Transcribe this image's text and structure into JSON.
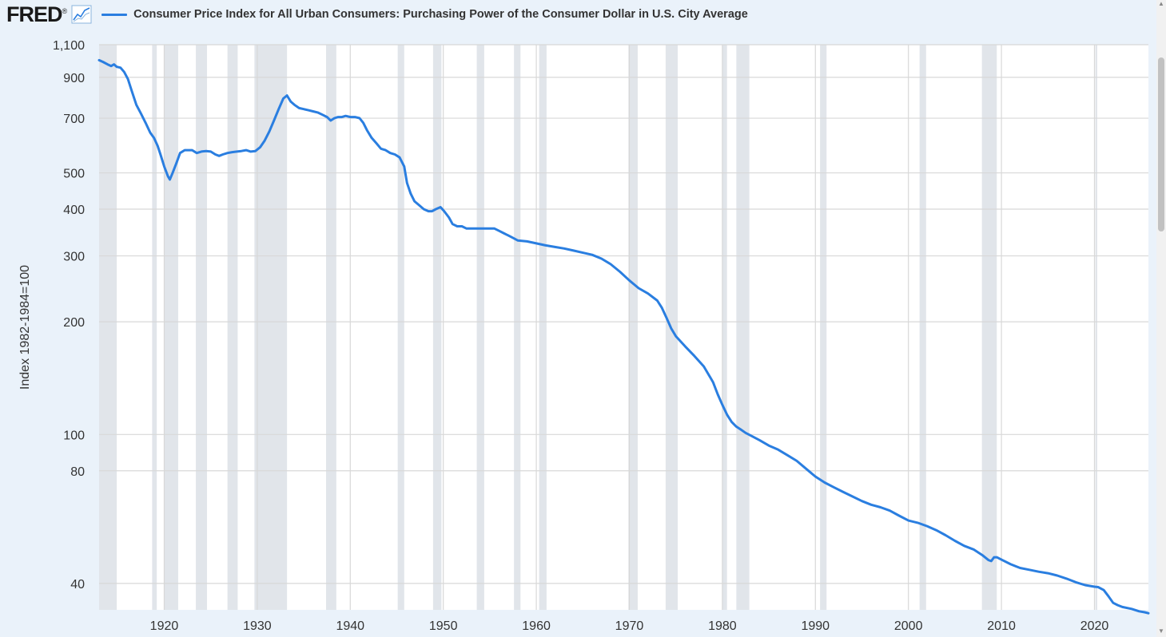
{
  "header": {
    "logo_text": "FRED",
    "logo_mark": "®"
  },
  "colors": {
    "series": "#2a7ee0",
    "recession": "#e1e5ea",
    "plot_bg": "#ffffff",
    "page_bg": "#eaf2fa",
    "grid": "#d8d8d8"
  },
  "chart_data": {
    "type": "line",
    "title": "Consumer Price Index for All Urban Consumers: Purchasing Power of the Consumer Dollar in U.S. City Average",
    "xlabel": "",
    "ylabel": "Index 1982-1984=100",
    "yscale": "log",
    "xlim": [
      1913,
      2025.8
    ],
    "ylim": [
      34,
      1100
    ],
    "x_ticks": [
      1920,
      1930,
      1940,
      1950,
      1960,
      1970,
      1980,
      1990,
      2000,
      2010,
      2020
    ],
    "y_ticks": [
      {
        "value": 1100,
        "label": "1,100"
      },
      {
        "value": 900,
        "label": "900"
      },
      {
        "value": 700,
        "label": "700"
      },
      {
        "value": 500,
        "label": "500"
      },
      {
        "value": 400,
        "label": "400"
      },
      {
        "value": 300,
        "label": "300"
      },
      {
        "value": 200,
        "label": "200"
      },
      {
        "value": 100,
        "label": "100"
      },
      {
        "value": 80,
        "label": "80"
      },
      {
        "value": 40,
        "label": "40"
      }
    ],
    "grid": true,
    "recessions": [
      [
        1913.0,
        1914.9
      ],
      [
        1918.7,
        1919.2
      ],
      [
        1920.0,
        1921.5
      ],
      [
        1923.4,
        1924.6
      ],
      [
        1926.8,
        1927.9
      ],
      [
        1929.7,
        1933.2
      ],
      [
        1937.4,
        1938.5
      ],
      [
        1945.1,
        1945.8
      ],
      [
        1948.9,
        1949.8
      ],
      [
        1953.6,
        1954.4
      ],
      [
        1957.6,
        1958.3
      ],
      [
        1960.3,
        1961.1
      ],
      [
        1969.9,
        1970.9
      ],
      [
        1973.9,
        1975.2
      ],
      [
        1980.0,
        1980.5
      ],
      [
        1981.5,
        1982.9
      ],
      [
        1990.5,
        1991.2
      ],
      [
        2001.2,
        2001.9
      ],
      [
        2007.9,
        2009.5
      ],
      [
        2020.1,
        2020.3
      ]
    ],
    "series": [
      {
        "name": "Consumer Price Index for All Urban Consumers: Purchasing Power of the Consumer Dollar in U.S. City Average",
        "x": [
          1913.0,
          1913.4,
          1913.9,
          1914.3,
          1914.6,
          1914.9,
          1915.3,
          1915.7,
          1916.1,
          1916.5,
          1917.0,
          1917.5,
          1918.0,
          1918.5,
          1918.9,
          1919.3,
          1919.6,
          1920.0,
          1920.4,
          1920.6,
          1920.9,
          1921.3,
          1921.7,
          1922.2,
          1922.6,
          1923.0,
          1923.5,
          1924.0,
          1924.5,
          1925.0,
          1925.5,
          1925.9,
          1926.3,
          1926.8,
          1927.3,
          1927.8,
          1928.3,
          1928.8,
          1929.3,
          1929.8,
          1930.3,
          1930.8,
          1931.3,
          1931.8,
          1932.3,
          1932.8,
          1933.2,
          1933.6,
          1934.0,
          1934.5,
          1935.0,
          1935.5,
          1936.0,
          1936.5,
          1937.0,
          1937.5,
          1937.9,
          1938.3,
          1938.7,
          1939.1,
          1939.5,
          1940.0,
          1940.5,
          1941.0,
          1941.4,
          1941.8,
          1942.3,
          1942.8,
          1943.3,
          1943.8,
          1944.3,
          1944.8,
          1945.3,
          1945.8,
          1946.1,
          1946.5,
          1946.9,
          1947.4,
          1947.9,
          1948.4,
          1948.8,
          1949.2,
          1949.7,
          1950.1,
          1950.6,
          1951.0,
          1951.5,
          1952.0,
          1952.5,
          1953.0,
          1953.5,
          1954.0,
          1954.5,
          1955.0,
          1955.5,
          1956.0,
          1956.5,
          1957.0,
          1957.5,
          1958.0,
          1959.0,
          1960.0,
          1961.0,
          1962.0,
          1963.0,
          1964.0,
          1965.0,
          1966.0,
          1967.0,
          1968.0,
          1969.0,
          1970.0,
          1971.0,
          1972.0,
          1973.0,
          1973.5,
          1974.0,
          1974.5,
          1975.0,
          1976.0,
          1977.0,
          1978.0,
          1979.0,
          1979.5,
          1980.0,
          1980.5,
          1981.0,
          1981.5,
          1982.0,
          1982.5,
          1983.0,
          1984.0,
          1985.0,
          1986.0,
          1987.0,
          1988.0,
          1989.0,
          1990.0,
          1991.0,
          1992.0,
          1993.0,
          1994.0,
          1995.0,
          1996.0,
          1997.0,
          1998.0,
          1999.0,
          2000.0,
          2001.0,
          2002.0,
          2003.0,
          2004.0,
          2005.0,
          2006.0,
          2007.0,
          2008.0,
          2008.6,
          2008.9,
          2009.2,
          2009.5,
          2010.0,
          2011.0,
          2012.0,
          2013.0,
          2014.0,
          2015.0,
          2016.0,
          2017.0,
          2018.0,
          2019.0,
          2020.0,
          2020.4,
          2021.0,
          2021.5,
          2022.0,
          2022.5,
          2023.0,
          2024.0,
          2024.8,
          2025.4,
          2025.8
        ],
        "values": [
          1000,
          990,
          975,
          965,
          975,
          960,
          955,
          930,
          890,
          830,
          760,
          720,
          680,
          640,
          620,
          590,
          560,
          520,
          490,
          480,
          500,
          530,
          565,
          575,
          575,
          575,
          565,
          570,
          572,
          570,
          560,
          555,
          560,
          565,
          568,
          570,
          572,
          575,
          570,
          572,
          585,
          610,
          645,
          690,
          740,
          790,
          805,
          775,
          760,
          745,
          740,
          735,
          730,
          725,
          715,
          705,
          690,
          700,
          705,
          705,
          710,
          705,
          705,
          700,
          680,
          650,
          620,
          600,
          580,
          575,
          565,
          560,
          550,
          520,
          470,
          440,
          420,
          410,
          400,
          395,
          395,
          400,
          405,
          395,
          380,
          365,
          360,
          360,
          355,
          355,
          355,
          355,
          355,
          355,
          355,
          350,
          345,
          340,
          335,
          330,
          328,
          324,
          320,
          317,
          314,
          310,
          306,
          302,
          295,
          285,
          272,
          258,
          246,
          238,
          228,
          218,
          205,
          192,
          183,
          172,
          162,
          152,
          138,
          128,
          120,
          113,
          108,
          105,
          103,
          101,
          99.5,
          96.6,
          93.4,
          91.1,
          88.0,
          85.0,
          81.0,
          77.2,
          74.4,
          72.2,
          70.2,
          68.3,
          66.4,
          64.9,
          63.9,
          62.6,
          60.7,
          58.9,
          58.1,
          56.9,
          55.5,
          53.8,
          52.0,
          50.4,
          49.3,
          47.5,
          46.2,
          45.9,
          47.0,
          47.0,
          46.3,
          45.0,
          44.0,
          43.5,
          43.0,
          42.6,
          42.0,
          41.2,
          40.3,
          39.6,
          39.2,
          39.1,
          38.4,
          37.0,
          35.5,
          35.0,
          34.6,
          34.2,
          33.7,
          33.5,
          33.3
        ]
      }
    ]
  }
}
